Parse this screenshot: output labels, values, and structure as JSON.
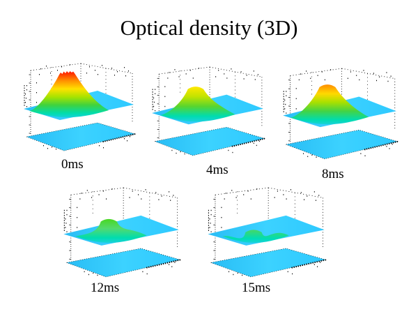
{
  "title": "Optical density (3D)",
  "background_color": "#ffffff",
  "text_color": "#000000",
  "chart_data": {
    "type": "surface3d-small-multiples",
    "title": "Optical density (3D)",
    "layout": "3 plots top row, 2 plots bottom row; each plot shows a 3D rainbow-colormap surface with a 2D contour projection plane beneath it, axes drawn as dotted black box frames",
    "colormap": "rainbow (cyan/blue low -> green -> yellow -> orange -> red high)",
    "plane_color": "#2ec9ff",
    "axis_tick_labels_legible": false,
    "subplots": [
      {
        "label": "0ms",
        "time_ms": 0,
        "peak_relative": 1.0,
        "jagged_peak": true,
        "peak_color": "#ff2400",
        "surface_stops": [
          "#ff2400",
          "#ff9000",
          "#ffe100",
          "#a6e300",
          "#3fd23f",
          "#00dcae",
          "#2ec9ff"
        ],
        "projection_stops": [
          "#ff3000",
          "#ff9900",
          "#ffec00",
          "#7be000",
          "#00dcae",
          "#2ec9ff"
        ],
        "blob_width": 1.0
      },
      {
        "label": "4ms",
        "time_ms": 4,
        "peak_relative": 0.72,
        "jagged_peak": false,
        "peak_color": "#ffe800",
        "surface_stops": [
          "#ffe800",
          "#c2e300",
          "#58d52e",
          "#00dcae",
          "#2ec9ff"
        ],
        "projection_stops": [
          "#ffc400",
          "#f8ec00",
          "#8ce23c",
          "#00dcae",
          "#2ec9ff"
        ],
        "blob_width": 1.05
      },
      {
        "label": "8ms",
        "time_ms": 8,
        "peak_relative": 0.82,
        "jagged_peak": false,
        "peak_color": "#ff9000",
        "surface_stops": [
          "#ff9000",
          "#ffd900",
          "#a8e000",
          "#44d344",
          "#00dcae",
          "#2ec9ff"
        ],
        "projection_stops": [
          "#ff5a00",
          "#ffaa00",
          "#ffee00",
          "#6fdd2a",
          "#00dcae",
          "#2ec9ff"
        ],
        "blob_width": 0.95
      },
      {
        "label": "12ms",
        "time_ms": 12,
        "peak_relative": 0.42,
        "jagged_peak": false,
        "peak_color": "#49d824",
        "surface_stops": [
          "#49d824",
          "#52da6e",
          "#00dcae",
          "#2ec9ff"
        ],
        "projection_stops": [
          "#8ce83c",
          "#3fd84d",
          "#00dcae",
          "#2ec9ff"
        ],
        "blob_width": 1.1
      },
      {
        "label": "15ms",
        "time_ms": 15,
        "peak_relative": 0.14,
        "jagged_peak": false,
        "peak_color": "#43d868",
        "surface_stops": [
          "#43d868",
          "#00dcb4",
          "#2ec9ff"
        ],
        "projection_stops": [
          "#4ade62",
          "#00dcb4",
          "#2ec9ff"
        ],
        "blob_width": 1.0
      }
    ]
  }
}
